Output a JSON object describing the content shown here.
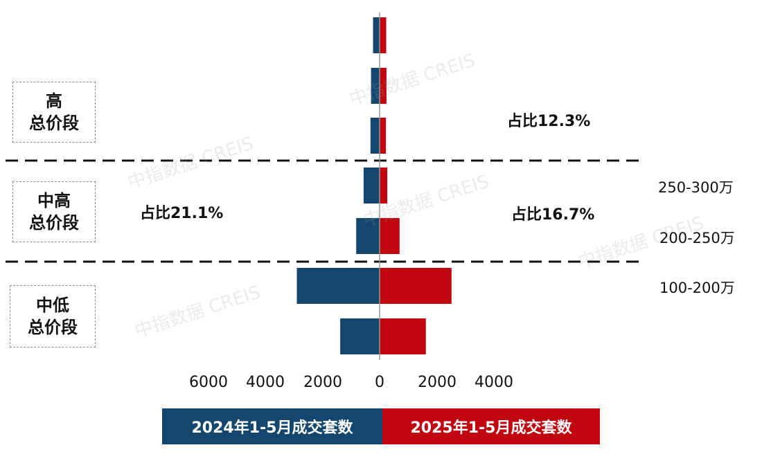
{
  "colors": {
    "series_2024": "#15466e",
    "series_2025": "#c0060f",
    "divider": "#111111",
    "axis_line": "#999999"
  },
  "segments": [
    {
      "label": "高\n总价段"
    },
    {
      "label": "中高\n总价段"
    },
    {
      "label": "中低\n总价段"
    }
  ],
  "shares": {
    "high_2025": "占比12.3%",
    "midhigh_2024": "占比21.1%",
    "midhigh_2025": "占比16.7%"
  },
  "category_labels": [
    "250-300万",
    "200-250万",
    "100-200万"
  ],
  "x_ticks": [
    "6000",
    "4000",
    "2000",
    "0",
    "2000",
    "4000"
  ],
  "watermark": "中指数据 CREIS",
  "chart_data": {
    "type": "bar",
    "orientation": "horizontal-mirrored",
    "categories": [
      "",
      "",
      "",
      "250-300万",
      "200-250万",
      "100-200万",
      ""
    ],
    "series": [
      {
        "name": "2024年1-5月成交套数",
        "values": [
          230,
          300,
          320,
          560,
          820,
          2900,
          1380
        ]
      },
      {
        "name": "2025年1-5月成交套数",
        "values": [
          230,
          240,
          220,
          270,
          700,
          2520,
          1620
        ]
      }
    ],
    "xlim": [
      -6000,
      4500
    ],
    "x_ticks": [
      -6000,
      -4000,
      -2000,
      0,
      2000,
      4000
    ],
    "x_tick_labels": [
      "6000",
      "4000",
      "2000",
      "0",
      "2000",
      "4000"
    ],
    "legend_position": "bottom"
  }
}
